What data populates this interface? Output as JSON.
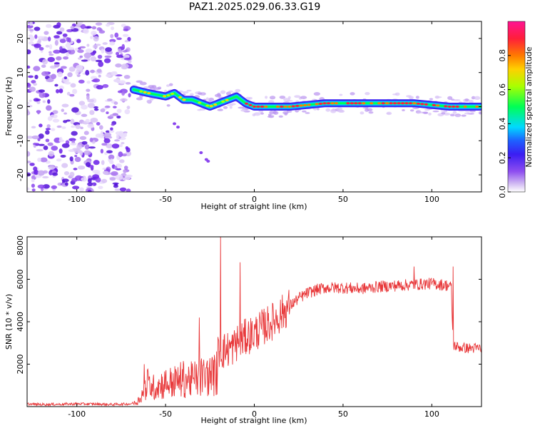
{
  "title": "PAZ1.2025.029.06.33.G19",
  "chart_data": [
    {
      "type": "heatmap",
      "xlabel": "Height of straight line (km)",
      "ylabel": "Frequency (Hz)",
      "xlim": [
        -128,
        128
      ],
      "ylim": [
        -25,
        25
      ],
      "xticks": [
        -100,
        -50,
        0,
        50,
        100
      ],
      "yticks": [
        -20,
        -10,
        0,
        10,
        20
      ],
      "noise_region_x": [
        -128,
        -70
      ],
      "ridge": {
        "x": [
          -68,
          -60,
          -50,
          -45,
          -40,
          -35,
          -30,
          -25,
          -20,
          -15,
          -10,
          -5,
          0,
          10,
          20,
          30,
          40,
          50,
          60,
          70,
          80,
          90,
          100,
          110,
          120,
          128
        ],
        "y": [
          5,
          4,
          3,
          4,
          2,
          2,
          1,
          0,
          1,
          2,
          3,
          1,
          0,
          0,
          0,
          0.5,
          1,
          1,
          1,
          1,
          1,
          1,
          0.5,
          0,
          0,
          0
        ]
      },
      "colorbar": {
        "label": "Normalized spectral amplitude",
        "ticks": [
          0.0,
          0.2,
          0.4,
          0.6,
          0.8
        ],
        "range": [
          0,
          1
        ]
      },
      "colors": [
        "#ffffff",
        "#cfb7f2",
        "#8e4ef0",
        "#4a1cf0",
        "#1e60ff",
        "#00d9ff",
        "#00ff66",
        "#aaff00",
        "#ff7a00",
        "#ff1e3a",
        "#ff1493"
      ]
    },
    {
      "type": "line",
      "xlabel": "Height of straight line (km)",
      "ylabel": "SNR (10 * v/v)",
      "xlim": [
        -128,
        128
      ],
      "ylim": [
        0,
        8000
      ],
      "xticks": [
        -100,
        -50,
        0,
        50,
        100
      ],
      "yticks": [
        2000,
        4000,
        6000,
        8000
      ],
      "line_color": "#e8383a",
      "series": [
        {
          "x": [
            -128,
            -120,
            -110,
            -100,
            -90,
            -80,
            -70,
            -66,
            -63,
            -60,
            -57,
            -54,
            -50,
            -45,
            -40,
            -35,
            -30,
            -25,
            -22,
            -21,
            -20,
            -18,
            -15,
            -12,
            -10,
            -8,
            -6,
            -3,
            0,
            5,
            10,
            15,
            20,
            25,
            30,
            35,
            40,
            50,
            60,
            70,
            80,
            90,
            100,
            105,
            110,
            111,
            112,
            115,
            120,
            128
          ],
          "values": [
            120,
            100,
            110,
            130,
            120,
            100,
            130,
            200,
            600,
            1100,
            900,
            1000,
            1100,
            1150,
            1300,
            1250,
            1400,
            1450,
            1500,
            1600,
            2700,
            2600,
            2700,
            2800,
            3000,
            3100,
            3200,
            3350,
            3450,
            3750,
            4000,
            4350,
            4750,
            5100,
            5350,
            5500,
            5600,
            5600,
            5550,
            5650,
            5700,
            5750,
            5800,
            5750,
            5700,
            5600,
            2900,
            2800,
            2750,
            2750
          ]
        }
      ],
      "spikes": [
        {
          "x": -62,
          "y": 2000
        },
        {
          "x": -31,
          "y": 4200
        },
        {
          "x": -19,
          "y": 8000
        },
        {
          "x": -8,
          "y": 6800
        },
        {
          "x": 90,
          "y": 6600
        },
        {
          "x": 112,
          "y": 6600
        }
      ]
    }
  ]
}
